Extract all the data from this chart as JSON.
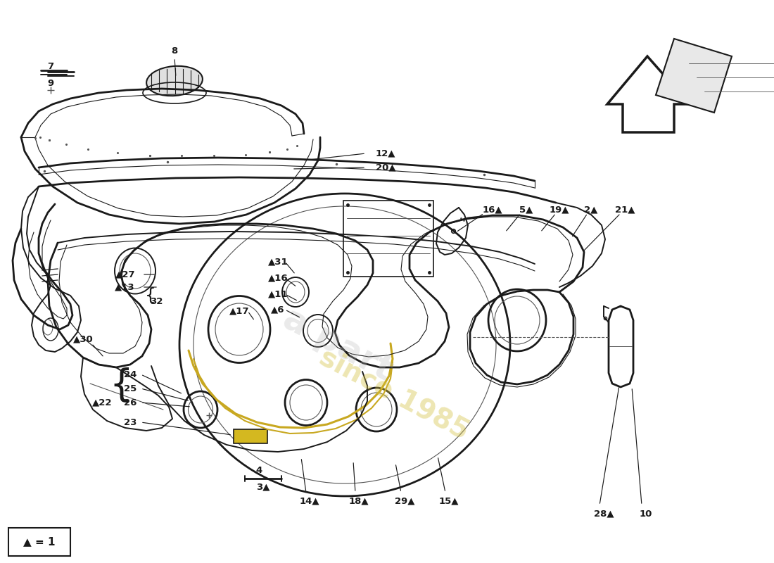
{
  "bg_color": "#ffffff",
  "fig_width": 11.0,
  "fig_height": 8.0,
  "line_color": "#1a1a1a",
  "light_line": "#555555",
  "yellow_line": "#c8a820",
  "label_fs": 9.5,
  "watermark_gray": "#bbbbbb",
  "watermark_yellow": "#d4c040",
  "legend_text": "▲ = 1"
}
